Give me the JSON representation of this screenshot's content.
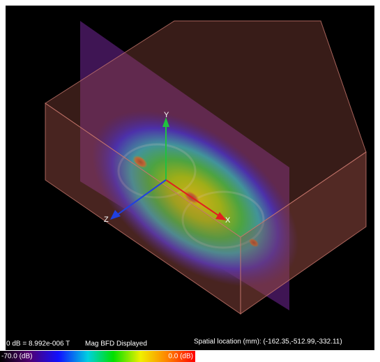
{
  "viewport": {
    "axes": {
      "y": "Y",
      "x": "X",
      "z": "Z"
    }
  },
  "status": {
    "reference": "0 dB = 8.992e-006 T",
    "mode": "Mag BFD Displayed",
    "location": "Spatial location (mm): (-162.35,-512.99,-332.11)"
  },
  "colorbar": {
    "min_label": "-70.0 (dB)",
    "max_label": "0.0 (dB)"
  }
}
